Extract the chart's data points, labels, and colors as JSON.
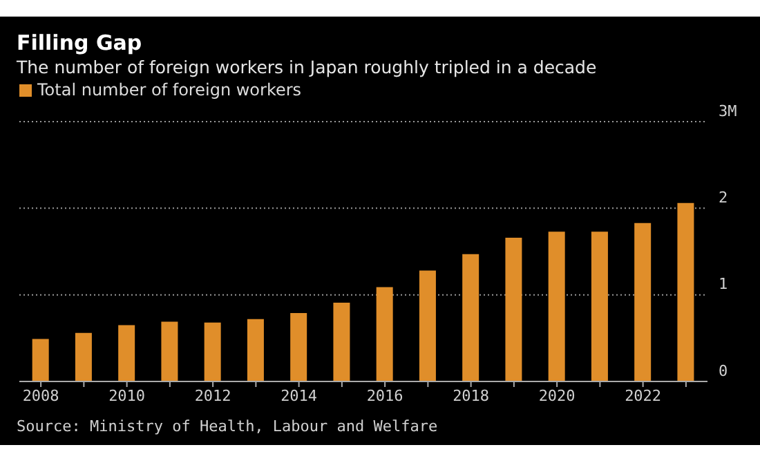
{
  "chart_data": {
    "type": "bar",
    "title": "Filling Gap",
    "subtitle": "The number of foreign workers in Japan roughly tripled in a decade",
    "categories": [
      "2008",
      null,
      "2010",
      null,
      "2012",
      null,
      "2014",
      null,
      "2016",
      null,
      "2018",
      null,
      "2020",
      null,
      "2022",
      null
    ],
    "series": [
      {
        "name": "Total number of foreign workers",
        "color": "#e08e2a",
        "values": [
          0.49,
          0.56,
          0.65,
          0.69,
          0.68,
          0.72,
          0.79,
          0.91,
          1.09,
          1.28,
          1.47,
          1.66,
          1.73,
          1.73,
          1.83,
          2.06
        ]
      }
    ],
    "ylim": [
      0,
      3
    ],
    "yticks": [
      0,
      1,
      2,
      {
        "value": 3,
        "label": "3M"
      }
    ],
    "grid": "y",
    "legend": "top left",
    "annotations": [
      "Source: Ministry of Health, Labour and Welfare"
    ]
  }
}
